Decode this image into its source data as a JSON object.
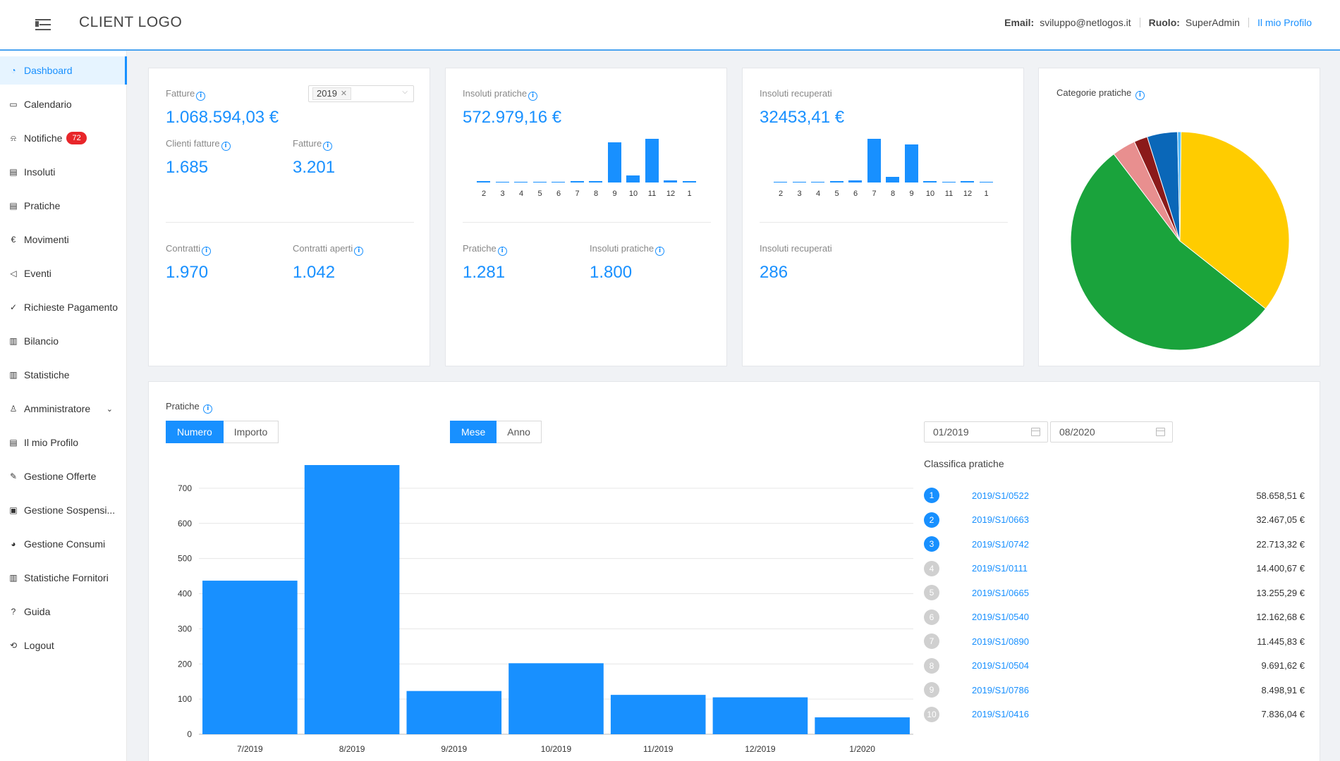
{
  "header": {
    "logo": "CLIENT LOGO",
    "email_label": "Email:",
    "email_value": "sviluppo@netlogos.it",
    "role_label": "Ruolo:",
    "role_value": "SuperAdmin",
    "profile_link": "Il mio Profilo"
  },
  "sidebar": {
    "items": [
      {
        "label": "Dashboard",
        "icon": "dashboard-icon"
      },
      {
        "label": "Calendario",
        "icon": "calendar-icon"
      },
      {
        "label": "Notifiche",
        "icon": "bell-icon",
        "badge": "72"
      },
      {
        "label": "Insoluti",
        "icon": "receipt-icon"
      },
      {
        "label": "Pratiche",
        "icon": "file-icon"
      },
      {
        "label": "Movimenti",
        "icon": "euro-icon"
      },
      {
        "label": "Eventi",
        "icon": "megaphone-icon"
      },
      {
        "label": "Richieste Pagamento",
        "icon": "check-circle-icon"
      },
      {
        "label": "Bilancio",
        "icon": "bar-chart-icon"
      },
      {
        "label": "Statistiche",
        "icon": "bar-chart-icon"
      },
      {
        "label": "Amministratore",
        "icon": "user-icon"
      },
      {
        "label": "Il mio Profilo",
        "icon": "profile-icon"
      },
      {
        "label": "Gestione Offerte",
        "icon": "edit-icon"
      },
      {
        "label": "Gestione Sospensi...",
        "icon": "pause-doc-icon"
      },
      {
        "label": "Gestione Consumi",
        "icon": "pie-icon"
      },
      {
        "label": "Statistiche Fornitori",
        "icon": "bar-chart-icon"
      },
      {
        "label": "Guida",
        "icon": "question-icon"
      },
      {
        "label": "Logout",
        "icon": "logout-icon"
      }
    ]
  },
  "card1": {
    "fatture_label": "Fatture",
    "fatture_value": "1.068.594,03 €",
    "year_tag": "2019",
    "clienti_label": "Clienti fatture",
    "clienti_value": "1.685",
    "fatture2_label": "Fatture",
    "fatture2_value": "3.201",
    "contratti_label": "Contratti",
    "contratti_value": "1.970",
    "aperti_label": "Contratti aperti",
    "aperti_value": "1.042"
  },
  "card2": {
    "label": "Insoluti pratiche",
    "value": "572.979,16 €",
    "pratiche_label": "Pratiche",
    "pratiche_value": "1.281",
    "insoluti_label": "Insoluti pratiche",
    "insoluti_value": "1.800"
  },
  "card3": {
    "label": "Insoluti recuperati",
    "value": "32453,41 €",
    "sub_label": "Insoluti recuperati",
    "sub_value": "286"
  },
  "card4": {
    "title": "Categorie pratiche"
  },
  "mini_chart_insoluti": {
    "ticks": [
      "2",
      "3",
      "4",
      "5",
      "6",
      "7",
      "8",
      "9",
      "10",
      "11",
      "12",
      "1"
    ],
    "values": [
      1,
      0,
      0,
      0,
      0,
      1,
      1,
      36,
      6,
      39,
      2,
      1
    ]
  },
  "mini_chart_recuperati": {
    "ticks": [
      "2",
      "3",
      "4",
      "5",
      "6",
      "7",
      "8",
      "9",
      "10",
      "11",
      "12",
      "1"
    ],
    "values": [
      0,
      0,
      0,
      1,
      2,
      38,
      5,
      33,
      1,
      0,
      1,
      0
    ]
  },
  "pie": {
    "slices": [
      {
        "value": 35.5,
        "color": "#ffcc00"
      },
      {
        "value": 54.0,
        "color": "#1aa33c"
      },
      {
        "value": 3.5,
        "color": "#e88f8f"
      },
      {
        "value": 2.0,
        "color": "#8b1a1a"
      },
      {
        "value": 4.5,
        "color": "#0a67b8"
      },
      {
        "value": 0.5,
        "color": "#4db8ff"
      }
    ]
  },
  "pratiche_panel": {
    "title": "Pratiche",
    "btn_numero": "Numero",
    "btn_importo": "Importo",
    "btn_mese": "Mese",
    "btn_anno": "Anno",
    "date_from": "01/2019",
    "date_to": "08/2020",
    "ranking_title": "Classifica pratiche"
  },
  "ranking": [
    {
      "rank": "1",
      "code": "2019/S1/0522",
      "amount": "58.658,51 €"
    },
    {
      "rank": "2",
      "code": "2019/S1/0663",
      "amount": "32.467,05 €"
    },
    {
      "rank": "3",
      "code": "2019/S1/0742",
      "amount": "22.713,32 €"
    },
    {
      "rank": "4",
      "code": "2019/S1/0111",
      "amount": "14.400,67 €"
    },
    {
      "rank": "5",
      "code": "2019/S1/0665",
      "amount": "13.255,29 €"
    },
    {
      "rank": "6",
      "code": "2019/S1/0540",
      "amount": "12.162,68 €"
    },
    {
      "rank": "7",
      "code": "2019/S1/0890",
      "amount": "11.445,83 €"
    },
    {
      "rank": "8",
      "code": "2019/S1/0504",
      "amount": "9.691,62 €"
    },
    {
      "rank": "9",
      "code": "2019/S1/0786",
      "amount": "8.498,91 €"
    },
    {
      "rank": "10",
      "code": "2019/S1/0416",
      "amount": "7.836,04 €"
    }
  ],
  "chart_data": {
    "type": "bar",
    "categories": [
      "7/2019",
      "8/2019",
      "9/2019",
      "10/2019",
      "11/2019",
      "12/2019",
      "1/2020"
    ],
    "values": [
      437,
      766,
      123,
      202,
      112,
      105,
      48
    ],
    "yticks": [
      0,
      100,
      200,
      300,
      400,
      500,
      600,
      700
    ],
    "ylim": [
      0,
      770
    ],
    "color": "#1890ff",
    "grid": true
  }
}
